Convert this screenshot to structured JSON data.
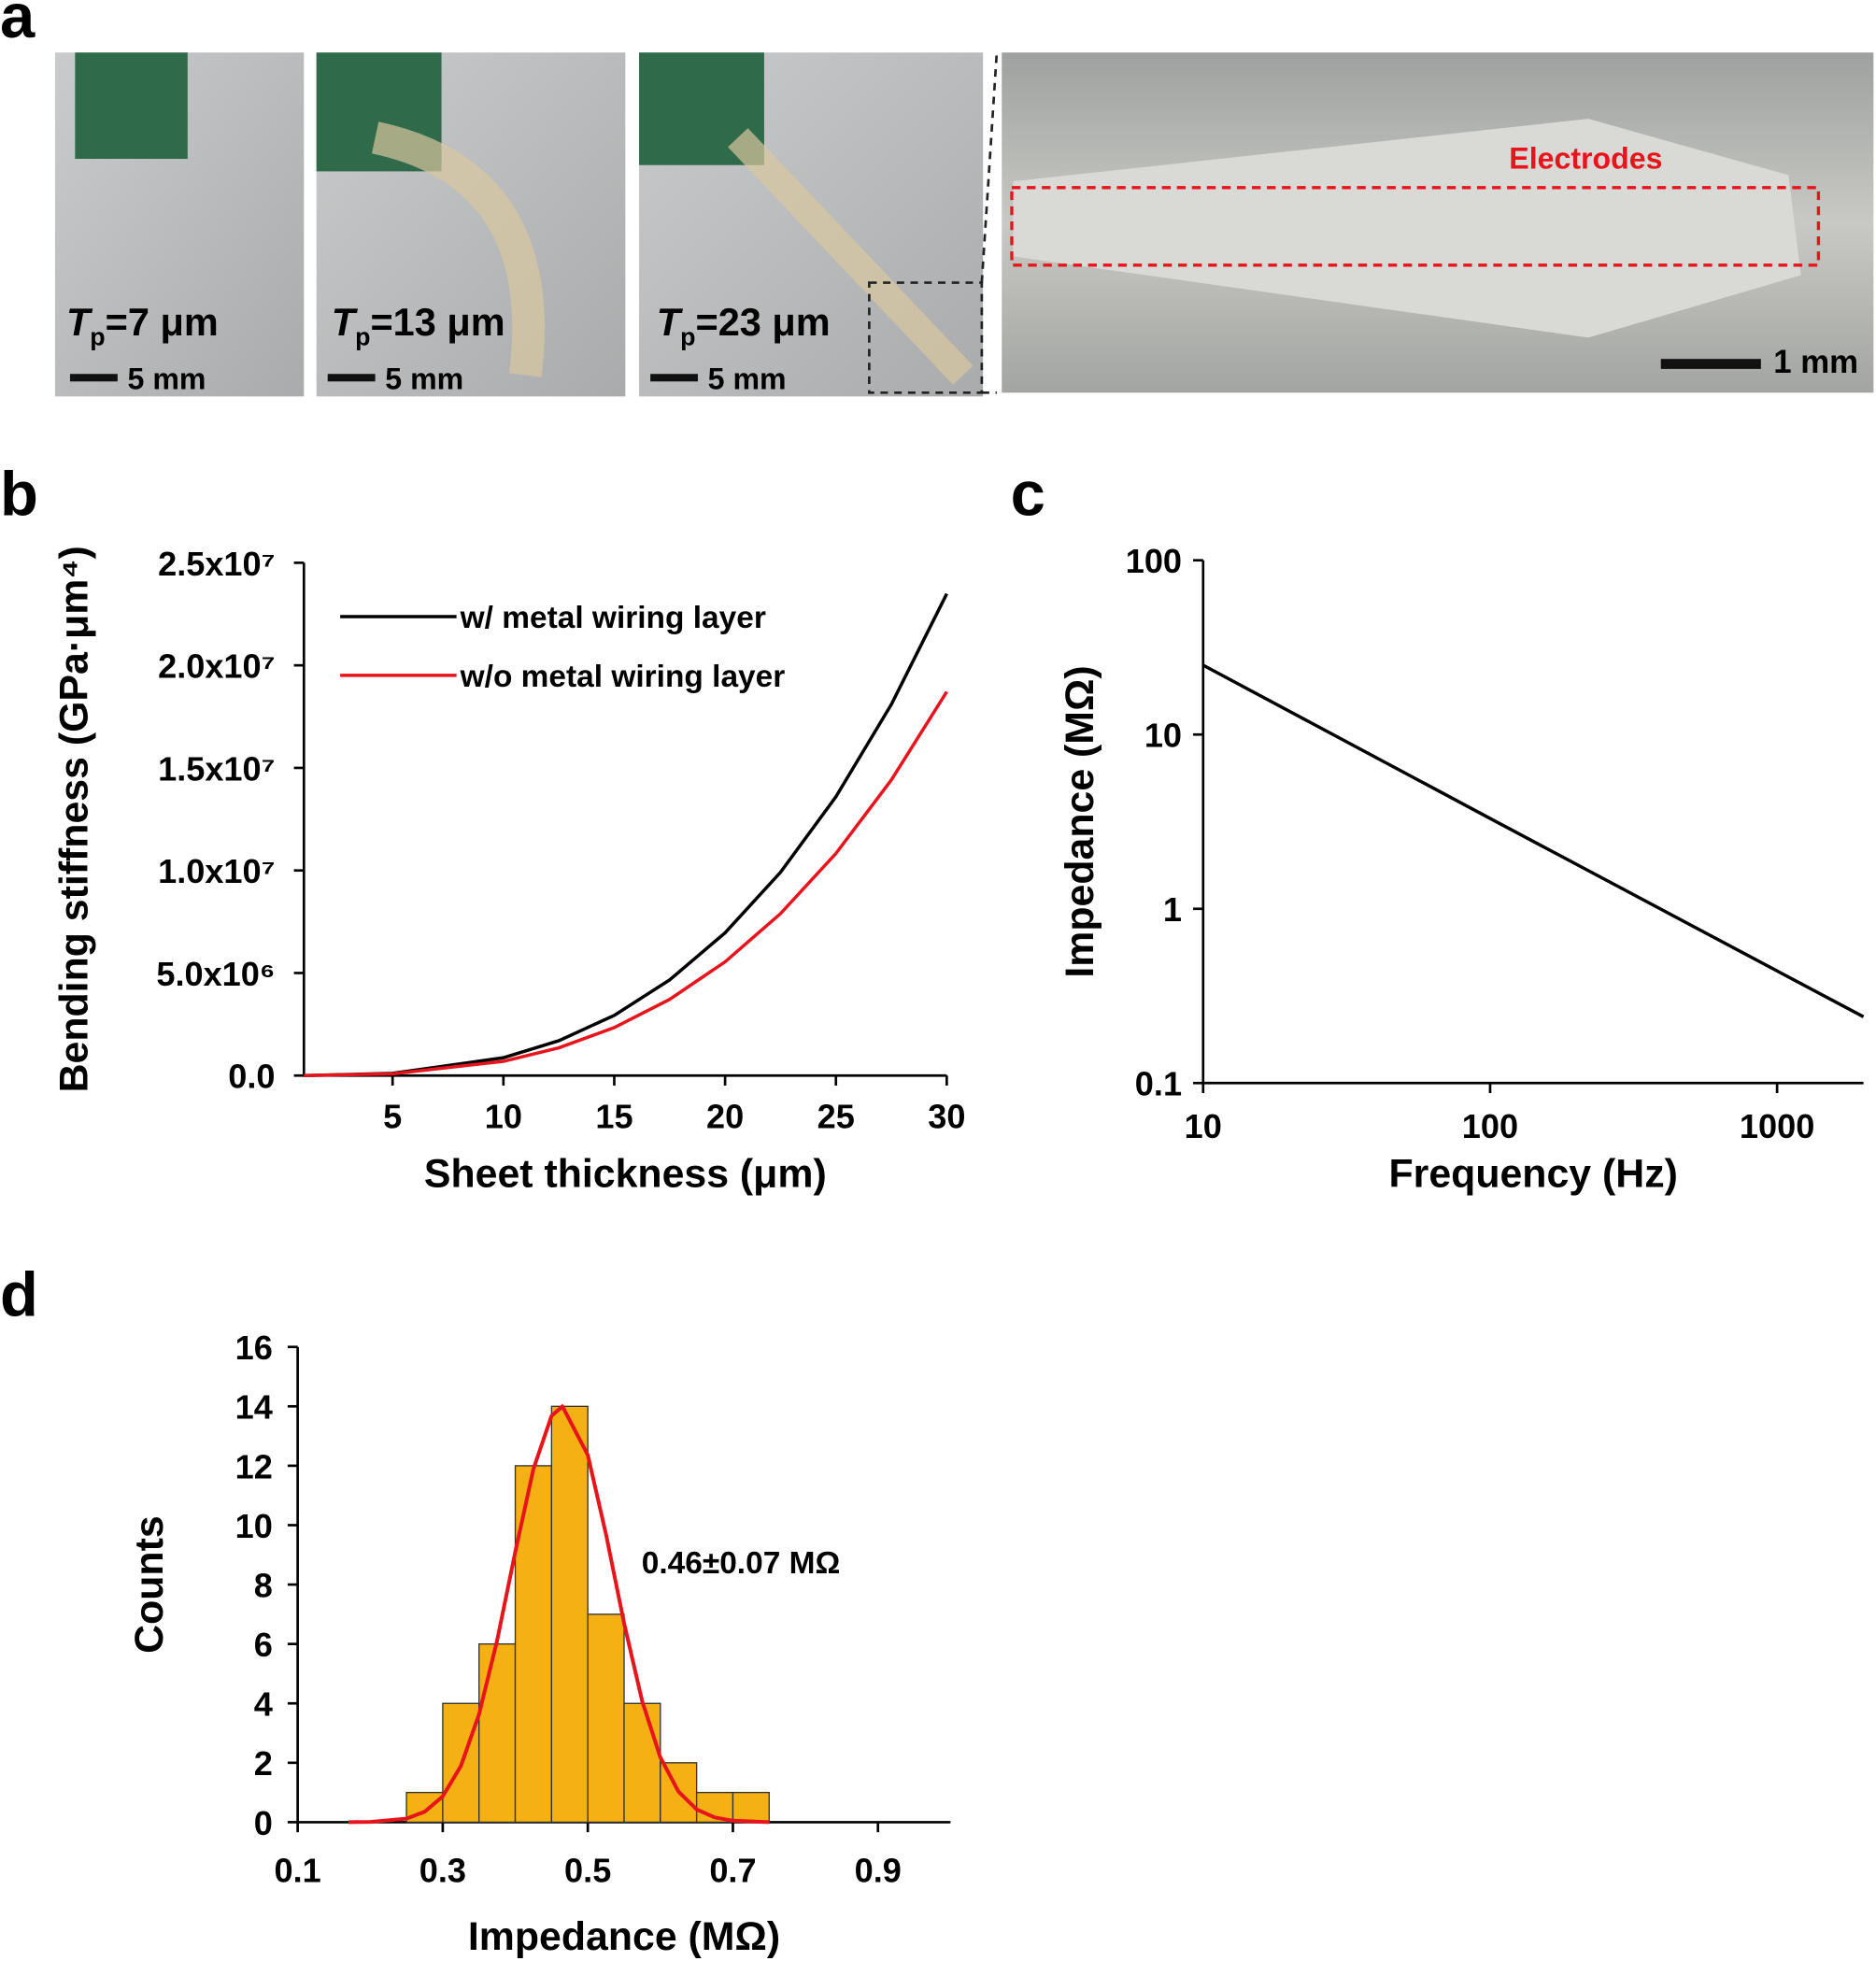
{
  "panel_labels": [
    "a",
    "b",
    "c",
    "d"
  ],
  "photos": [
    {
      "symbol": "T",
      "subscript": "p",
      "thickness": "=7 μm",
      "scale": "5 mm"
    },
    {
      "symbol": "T",
      "subscript": "p",
      "thickness": "=13 μm",
      "scale": "5 mm"
    },
    {
      "symbol": "T",
      "subscript": "p",
      "thickness": "=23 μm",
      "scale": "5 mm"
    }
  ],
  "zoom": {
    "label": "Electrodes",
    "scale": "1 mm"
  },
  "chart_data": [
    {
      "type": "line",
      "xlabel": "Sheet thickness (μm)",
      "ylabel": "Bending stiffness (GPa·μm⁴)",
      "x": [
        1,
        5,
        10,
        12.5,
        15,
        17.5,
        20,
        22.5,
        25,
        27.5,
        30
      ],
      "series": [
        {
          "name": "w/  metal wiring layer",
          "color": "#000000",
          "values": [
            870,
            108750,
            870000,
            1699000,
            2936000,
            4662000,
            6960000,
            9910000,
            13594000,
            18093000,
            23490000
          ]
        },
        {
          "name": "w/o metal wiring layer",
          "color": "#e8141c",
          "values": [
            693,
            86600,
            693000,
            1353000,
            2339000,
            3714000,
            5544000,
            7894000,
            10828000,
            14412000,
            18710000
          ]
        }
      ],
      "xlim": [
        1,
        30
      ],
      "xticks": [
        5,
        10,
        15,
        20,
        25,
        30
      ],
      "ylim": [
        0,
        25000000
      ],
      "yticks": [
        {
          "value": 0,
          "label": "0.0"
        },
        {
          "value": 5000000,
          "label": "5.0x10⁶"
        },
        {
          "value": 10000000,
          "label": "1.0x10⁷"
        },
        {
          "value": 15000000,
          "label": "1.5x10⁷"
        },
        {
          "value": 20000000,
          "label": "2.0x10⁷"
        },
        {
          "value": 25000000,
          "label": "2.5x10⁷"
        }
      ],
      "legend": "top-left"
    },
    {
      "type": "line",
      "xlabel": "Frequency (Hz)",
      "ylabel": "Impedance (MΩ)",
      "x": [
        10,
        100,
        1000,
        2000
      ],
      "series": [
        {
          "name": "Impedance",
          "color": "#000000",
          "values": [
            25,
            3.3,
            0.44,
            0.24
          ]
        }
      ],
      "xlim": [
        10,
        2000
      ],
      "xticks": [
        10,
        100,
        1000
      ],
      "xlog": true,
      "ylim": [
        0.1,
        100
      ],
      "yticks": [
        0.1,
        1,
        10,
        100
      ],
      "ylog": true
    },
    {
      "type": "histogram",
      "xlabel": "Impedance (MΩ)",
      "ylabel": "Counts",
      "bins": [
        0.25,
        0.3,
        0.35,
        0.4,
        0.45,
        0.5,
        0.55,
        0.6,
        0.65,
        0.7,
        0.75
      ],
      "values": [
        1,
        4,
        6,
        12,
        14,
        7,
        4,
        2,
        1,
        1
      ],
      "color": "#f5b014",
      "fit": {
        "color": "#e8141c",
        "x": [
          0.17,
          0.2,
          0.25,
          0.275,
          0.3,
          0.325,
          0.35,
          0.375,
          0.4,
          0.425,
          0.45,
          0.465,
          0.5,
          0.525,
          0.55,
          0.575,
          0.6,
          0.625,
          0.65,
          0.675,
          0.7,
          0.75
        ],
        "values": [
          0,
          0.01,
          0.12,
          0.35,
          0.87,
          1.89,
          3.63,
          6.12,
          9.1,
          11.89,
          13.68,
          14,
          12.36,
          9.7,
          6.7,
          4.07,
          2.18,
          1.03,
          0.43,
          0.16,
          0.05,
          0
        ]
      },
      "annotation": "0.46±0.07 MΩ",
      "xlim": [
        0.1,
        1.0
      ],
      "xticks": [
        0.1,
        0.3,
        0.5,
        0.7,
        0.9
      ],
      "ylim": [
        0,
        16
      ],
      "yticks": [
        0,
        2,
        4,
        6,
        8,
        10,
        12,
        14,
        16
      ]
    }
  ]
}
